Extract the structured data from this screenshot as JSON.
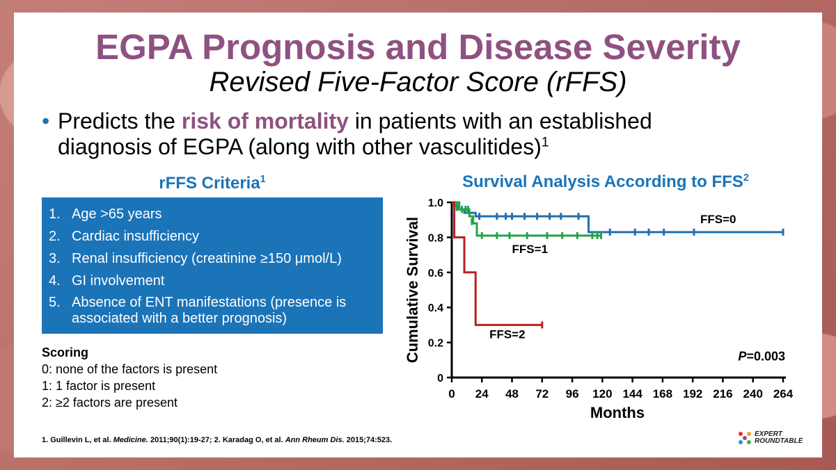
{
  "title": "EGPA Prognosis and Disease Severity",
  "subtitle": "Revised Five-Factor Score (rFFS)",
  "bullet": {
    "pre": "Predicts the ",
    "highlight": "risk of mortality",
    "post": " in patients with an established diagnosis of EGPA (along with other vasculitides)",
    "sup": "1"
  },
  "criteria": {
    "heading": "rFFS Criteria",
    "heading_sup": "1",
    "items": [
      {
        "num": "1.",
        "text": "Age >65 years"
      },
      {
        "num": "2.",
        "text": "Cardiac insufficiency"
      },
      {
        "num": "3.",
        "text": "Renal insufficiency (creatinine ≥150 μmol/L)"
      },
      {
        "num": "4.",
        "text": "GI involvement"
      },
      {
        "num": "5.",
        "text": "Absence of ENT manifestations (presence is associated with a better prognosis)"
      }
    ]
  },
  "scoring": {
    "heading": "Scoring",
    "lines": [
      "0: none of the factors is present",
      "1: 1 factor is present",
      "2: ≥2 factors are present"
    ]
  },
  "references": {
    "r1_pre": "1. Guillevin L, et al. ",
    "r1_journal": "Medicine.",
    "r1_post": " 2011;90(1):19-27; 2. Karadag O, et al. ",
    "r2_journal": "Ann Rheum Dis.",
    "r2_post": " 2015;74:523."
  },
  "logo": {
    "line1": "EXPERT",
    "line2": "ROUNDTABLE"
  },
  "chart_data": {
    "type": "line",
    "title": "Survival Analysis According to FFS",
    "title_sup": "2",
    "xlabel": "Months",
    "ylabel": "Cumulative Survival",
    "xlim": [
      0,
      264
    ],
    "ylim": [
      0,
      1.0
    ],
    "xticks": [
      0,
      24,
      48,
      72,
      96,
      120,
      144,
      168,
      192,
      216,
      240,
      264
    ],
    "yticks": [
      0,
      0.2,
      0.4,
      0.6,
      0.8,
      1.0
    ],
    "ytick_labels": [
      "0",
      "0.2",
      "0.4",
      "0.6",
      "0.8",
      "1.0"
    ],
    "annotation": {
      "italic": "P",
      "text": "=0.003"
    },
    "series": [
      {
        "name": "FFS=0",
        "color": "#1f6fb0",
        "steps": [
          [
            0,
            1.0
          ],
          [
            2,
            0.98
          ],
          [
            5,
            0.96
          ],
          [
            10,
            0.94
          ],
          [
            19,
            0.92
          ],
          [
            109,
            0.92
          ],
          [
            109,
            0.83
          ],
          [
            264,
            0.83
          ]
        ],
        "censors": [
          [
            4,
            0.98
          ],
          [
            22,
            0.92
          ],
          [
            36,
            0.92
          ],
          [
            43,
            0.92
          ],
          [
            48,
            0.92
          ],
          [
            58,
            0.92
          ],
          [
            68,
            0.92
          ],
          [
            78,
            0.92
          ],
          [
            87,
            0.92
          ],
          [
            101,
            0.92
          ],
          [
            126,
            0.83
          ],
          [
            146,
            0.83
          ],
          [
            157,
            0.83
          ],
          [
            169,
            0.83
          ],
          [
            193,
            0.83
          ],
          [
            264,
            0.83
          ]
        ]
      },
      {
        "name": "FFS=1",
        "color": "#24a24a",
        "steps": [
          [
            0,
            1.0
          ],
          [
            6,
            0.96
          ],
          [
            14,
            0.92
          ],
          [
            17,
            0.88
          ],
          [
            20,
            0.81
          ],
          [
            119,
            0.81
          ]
        ],
        "censors": [
          [
            4,
            0.97
          ],
          [
            8,
            0.96
          ],
          [
            11,
            0.96
          ],
          [
            13,
            0.96
          ],
          [
            16,
            0.89
          ],
          [
            24,
            0.81
          ],
          [
            36,
            0.81
          ],
          [
            46,
            0.81
          ],
          [
            60,
            0.81
          ],
          [
            76,
            0.81
          ],
          [
            88,
            0.81
          ],
          [
            100,
            0.81
          ],
          [
            112,
            0.81
          ],
          [
            116,
            0.81
          ],
          [
            119,
            0.81
          ]
        ]
      },
      {
        "name": "FFS=2",
        "color": "#b82020",
        "steps": [
          [
            0,
            1.0
          ],
          [
            2,
            0.8
          ],
          [
            10,
            0.8
          ],
          [
            10,
            0.6
          ],
          [
            19,
            0.6
          ],
          [
            19,
            0.3
          ],
          [
            72,
            0.3
          ]
        ],
        "censors": [
          [
            72,
            0.3
          ]
        ]
      }
    ]
  }
}
